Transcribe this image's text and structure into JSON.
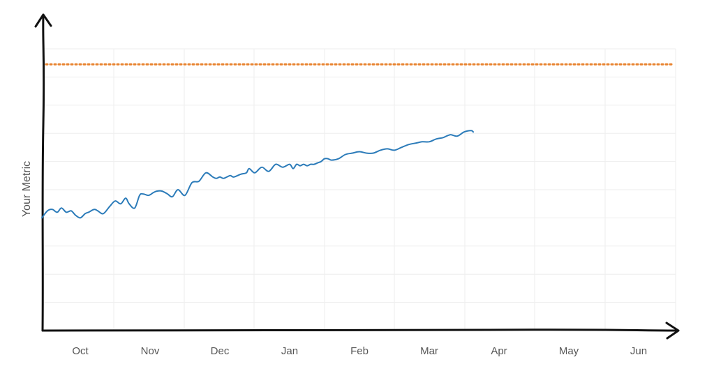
{
  "chart_data": {
    "type": "line",
    "title": "",
    "xlabel": "",
    "ylabel": "Your Metric",
    "x_ticks": [
      "Oct",
      "Nov",
      "Dec",
      "Jan",
      "Feb",
      "Mar",
      "Apr",
      "May",
      "Jun"
    ],
    "grid": true,
    "colors": {
      "series": "#2b7bb9",
      "target": "#e8822e",
      "axis": "#111111",
      "grid": "#eeeeee",
      "text": "#555555"
    },
    "ylim": [
      0,
      100
    ],
    "xlim": [
      -0.55,
      8.5
    ],
    "target": {
      "value": 94.5,
      "style": "dotted"
    },
    "series": [
      {
        "x": [
          -0.55,
          -0.47,
          -0.4,
          -0.33,
          -0.27,
          -0.2,
          -0.13,
          -0.07,
          0.0,
          0.07,
          0.12,
          0.2,
          0.25,
          0.33,
          0.42,
          0.5,
          0.58,
          0.65,
          0.7,
          0.78,
          0.85,
          0.9,
          0.98,
          1.05,
          1.1,
          1.17,
          1.25,
          1.32,
          1.4,
          1.5,
          1.6,
          1.7,
          1.8,
          1.9,
          1.95,
          2.0,
          2.05,
          2.1,
          2.15,
          2.2,
          2.3,
          2.38,
          2.42,
          2.5,
          2.6,
          2.7,
          2.8,
          2.9,
          3.0,
          3.05,
          3.1,
          3.15,
          3.2,
          3.25,
          3.3,
          3.35,
          3.4,
          3.45,
          3.5,
          3.55,
          3.6,
          3.7,
          3.8,
          3.9,
          4.0,
          4.1,
          4.2,
          4.3,
          4.4,
          4.5,
          4.6,
          4.7,
          4.8,
          4.9,
          5.0,
          5.1,
          5.2,
          5.3,
          5.4,
          5.5,
          5.6,
          5.63
        ],
        "y": [
          40,
          42.5,
          43,
          42,
          43.5,
          42,
          42.5,
          41,
          40,
          41.5,
          42,
          43,
          42.5,
          41.5,
          44,
          46,
          45,
          47,
          45,
          43.5,
          48,
          48.5,
          48,
          49,
          49.5,
          49.5,
          48.5,
          47.5,
          50,
          48,
          52.5,
          53,
          56,
          54.5,
          54,
          54.5,
          54,
          54.5,
          55,
          54.5,
          55.5,
          56,
          57.5,
          56,
          58,
          56.5,
          59,
          58,
          59,
          57.5,
          59,
          58.5,
          59,
          58.5,
          59,
          59,
          59.5,
          60,
          61,
          61,
          60.5,
          61,
          62.5,
          63,
          63.5,
          63,
          63,
          64,
          64.5,
          64,
          65,
          66,
          66.5,
          67,
          67,
          68,
          68.5,
          69.5,
          69,
          70.5,
          71,
          70.5
        ]
      }
    ]
  }
}
